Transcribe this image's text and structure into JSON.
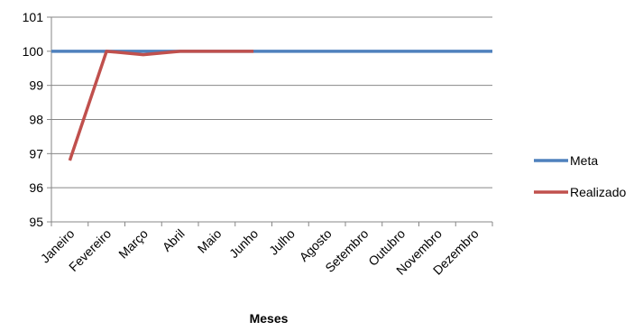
{
  "chart_data": {
    "type": "line",
    "title": "",
    "xlabel": "Meses",
    "ylabel": "",
    "categories": [
      "Janeiro",
      "Fevereiro",
      "Março",
      "Abril",
      "Maio",
      "Junho",
      "Julho",
      "Agosto",
      "Setembro",
      "Outubro",
      "Novembro",
      "Dezembro"
    ],
    "ylim": [
      95,
      101
    ],
    "yticks": [
      "95",
      "96",
      "97",
      "98",
      "99",
      "100",
      "101"
    ],
    "grid": true,
    "legend_position": "right",
    "series": [
      {
        "name": "Meta",
        "color": "#4F81BD",
        "values": [
          100,
          100,
          100,
          100,
          100,
          100,
          100,
          100,
          100,
          100,
          100,
          100
        ]
      },
      {
        "name": "Realizado",
        "color": "#C0504D",
        "values": [
          96.8,
          100,
          99.9,
          100,
          100,
          100,
          null,
          null,
          null,
          null,
          null,
          null
        ]
      }
    ]
  }
}
